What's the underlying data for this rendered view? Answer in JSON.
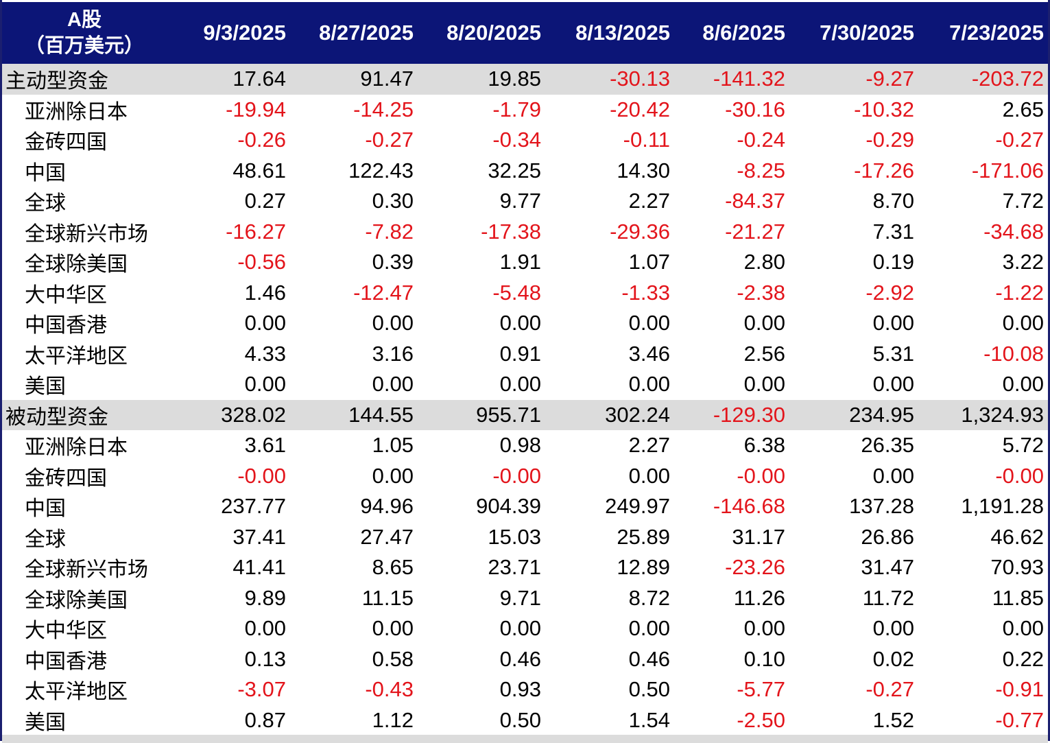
{
  "header": {
    "corner_line1": "A股",
    "corner_line2": "（百万美元）",
    "dates": [
      "9/3/2025",
      "8/27/2025",
      "8/20/2025",
      "8/13/2025",
      "8/6/2025",
      "7/30/2025",
      "7/23/2025"
    ]
  },
  "rows": [
    {
      "label": "主动型资金",
      "group": true,
      "values": [
        "17.64",
        "91.47",
        "19.85",
        "-30.13",
        "-141.32",
        "-9.27",
        "-203.72"
      ]
    },
    {
      "label": "亚洲除日本",
      "group": false,
      "values": [
        "-19.94",
        "-14.25",
        "-1.79",
        "-20.42",
        "-30.16",
        "-10.32",
        "2.65"
      ]
    },
    {
      "label": "金砖四国",
      "group": false,
      "values": [
        "-0.26",
        "-0.27",
        "-0.34",
        "-0.11",
        "-0.24",
        "-0.29",
        "-0.27"
      ]
    },
    {
      "label": "中国",
      "group": false,
      "values": [
        "48.61",
        "122.43",
        "32.25",
        "14.30",
        "-8.25",
        "-17.26",
        "-171.06"
      ]
    },
    {
      "label": "全球",
      "group": false,
      "values": [
        "0.27",
        "0.30",
        "9.77",
        "2.27",
        "-84.37",
        "8.70",
        "7.72"
      ]
    },
    {
      "label": "全球新兴市场",
      "group": false,
      "values": [
        "-16.27",
        "-7.82",
        "-17.38",
        "-29.36",
        "-21.27",
        "7.31",
        "-34.68"
      ]
    },
    {
      "label": "全球除美国",
      "group": false,
      "values": [
        "-0.56",
        "0.39",
        "1.91",
        "1.07",
        "2.80",
        "0.19",
        "3.22"
      ]
    },
    {
      "label": "大中华区",
      "group": false,
      "values": [
        "1.46",
        "-12.47",
        "-5.48",
        "-1.33",
        "-2.38",
        "-2.92",
        "-1.22"
      ]
    },
    {
      "label": "中国香港",
      "group": false,
      "values": [
        "0.00",
        "0.00",
        "0.00",
        "0.00",
        "0.00",
        "0.00",
        "0.00"
      ]
    },
    {
      "label": "太平洋地区",
      "group": false,
      "values": [
        "4.33",
        "3.16",
        "0.91",
        "3.46",
        "2.56",
        "5.31",
        "-10.08"
      ]
    },
    {
      "label": "美国",
      "group": false,
      "values": [
        "0.00",
        "0.00",
        "0.00",
        "0.00",
        "0.00",
        "0.00",
        "0.00"
      ]
    },
    {
      "label": "被动型资金",
      "group": true,
      "values": [
        "328.02",
        "144.55",
        "955.71",
        "302.24",
        "-129.30",
        "234.95",
        "1,324.93"
      ]
    },
    {
      "label": "亚洲除日本",
      "group": false,
      "values": [
        "3.61",
        "1.05",
        "0.98",
        "2.27",
        "6.38",
        "26.35",
        "5.72"
      ]
    },
    {
      "label": "金砖四国",
      "group": false,
      "values": [
        "-0.00",
        "0.00",
        "-0.00",
        "0.00",
        "-0.00",
        "0.00",
        "-0.00"
      ]
    },
    {
      "label": "中国",
      "group": false,
      "values": [
        "237.77",
        "94.96",
        "904.39",
        "249.97",
        "-146.68",
        "137.28",
        "1,191.28"
      ]
    },
    {
      "label": "全球",
      "group": false,
      "values": [
        "37.41",
        "27.47",
        "15.03",
        "25.89",
        "31.17",
        "26.86",
        "46.62"
      ]
    },
    {
      "label": "全球新兴市场",
      "group": false,
      "values": [
        "41.41",
        "8.65",
        "23.71",
        "12.89",
        "-23.26",
        "31.47",
        "70.93"
      ]
    },
    {
      "label": "全球除美国",
      "group": false,
      "values": [
        "9.89",
        "11.15",
        "9.71",
        "8.72",
        "11.26",
        "11.72",
        "11.85"
      ]
    },
    {
      "label": "大中华区",
      "group": false,
      "values": [
        "0.00",
        "0.00",
        "0.00",
        "0.00",
        "0.00",
        "0.00",
        "0.00"
      ]
    },
    {
      "label": "中国香港",
      "group": false,
      "values": [
        "0.13",
        "0.58",
        "0.46",
        "0.46",
        "0.10",
        "0.02",
        "0.22"
      ]
    },
    {
      "label": "太平洋地区",
      "group": false,
      "values": [
        "-3.07",
        "-0.43",
        "0.93",
        "0.50",
        "-5.77",
        "-0.27",
        "-0.91"
      ]
    },
    {
      "label": "美国",
      "group": false,
      "values": [
        "0.87",
        "1.12",
        "0.50",
        "1.54",
        "-2.50",
        "1.52",
        "-0.77"
      ]
    }
  ],
  "colors": {
    "header_bg": "#0c1577",
    "header_text": "#ffffff",
    "group_row_bg": "#dcdcdc",
    "negative_text": "#e3141b",
    "positive_text": "#000000"
  }
}
